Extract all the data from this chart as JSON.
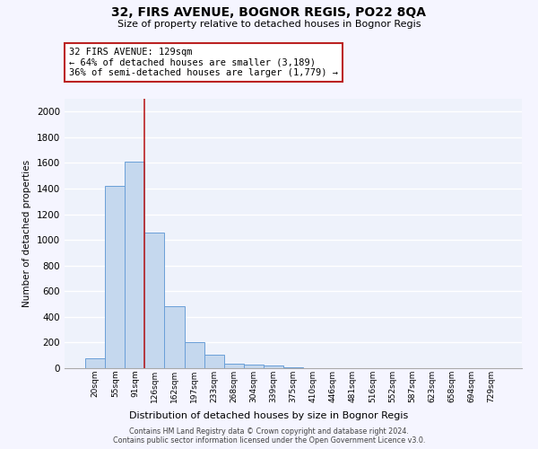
{
  "title": "32, FIRS AVENUE, BOGNOR REGIS, PO22 8QA",
  "subtitle": "Size of property relative to detached houses in Bognor Regis",
  "xlabel": "Distribution of detached houses by size in Bognor Regis",
  "ylabel": "Number of detached properties",
  "categories": [
    "20sqm",
    "55sqm",
    "91sqm",
    "126sqm",
    "162sqm",
    "197sqm",
    "233sqm",
    "268sqm",
    "304sqm",
    "339sqm",
    "375sqm",
    "410sqm",
    "446sqm",
    "481sqm",
    "516sqm",
    "552sqm",
    "587sqm",
    "623sqm",
    "658sqm",
    "694sqm",
    "729sqm"
  ],
  "values": [
    80,
    1420,
    1610,
    1055,
    480,
    200,
    108,
    35,
    30,
    18,
    10,
    0,
    0,
    0,
    0,
    0,
    0,
    0,
    0,
    0,
    0
  ],
  "bar_color": "#c5d8ee",
  "bar_edge_color": "#6a9fd8",
  "property_line_color": "#bb2222",
  "annotation_text": "32 FIRS AVENUE: 129sqm\n← 64% of detached houses are smaller (3,189)\n36% of semi-detached houses are larger (1,779) →",
  "annotation_box_color": "#ffffff",
  "annotation_box_edge_color": "#bb2222",
  "background_color": "#eef2fb",
  "grid_color": "#ffffff",
  "ylim": [
    0,
    2100
  ],
  "yticks": [
    0,
    200,
    400,
    600,
    800,
    1000,
    1200,
    1400,
    1600,
    1800,
    2000
  ],
  "footer_line1": "Contains HM Land Registry data © Crown copyright and database right 2024.",
  "footer_line2": "Contains public sector information licensed under the Open Government Licence v3.0."
}
